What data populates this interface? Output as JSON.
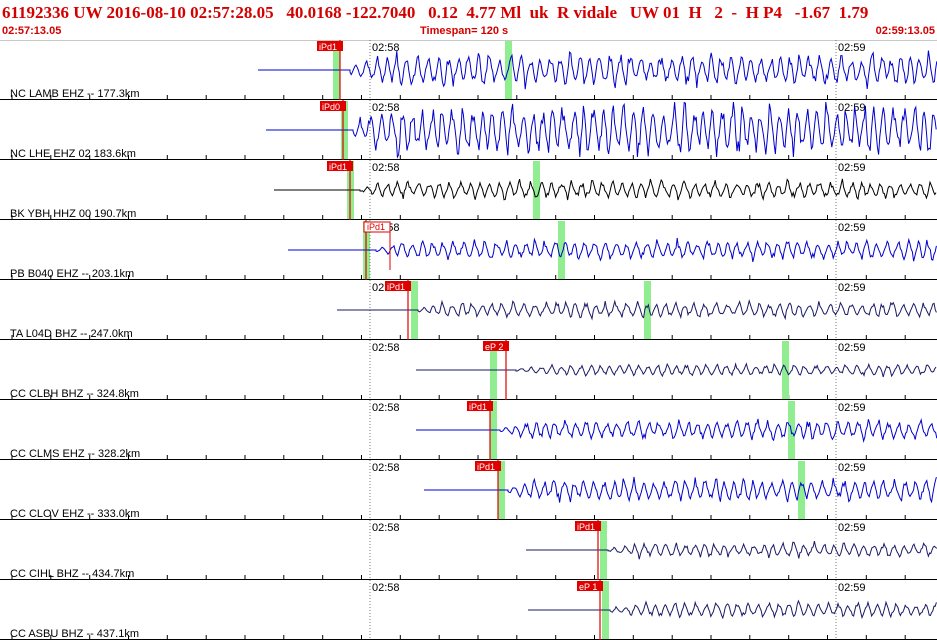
{
  "header": {
    "title": "61192336 UW 2016-08-10 02:57:28.05   40.0168 -122.7040   0.12  4.77 Ml  uk  R vidale   UW 01  H   2  -  H P4   -1.67  1.79",
    "start_time": "02:57:13.05",
    "timespan": "Timespan= 120 s",
    "end_time": "02:59:13.05"
  },
  "time_marks": [
    "02:58",
    "02:59"
  ],
  "colors": {
    "blue": "#0000cc",
    "black": "#000000",
    "navy": "#1a1a66",
    "pick_red": "#e00000",
    "green_band": "#90ee90",
    "label_text": "#000000"
  },
  "traces": [
    {
      "label": "NC LAMB EHZ -- 177.3km",
      "pick": "iPd1",
      "color": "blue",
      "amp": 1.0,
      "onset": 0.4,
      "pick_style": "solid"
    },
    {
      "label": "NC LHE EHZ 02 183.6km",
      "pick": "iPd0",
      "color": "blue",
      "amp": 1.6,
      "onset": 0.45,
      "pick_style": "solid"
    },
    {
      "label": "BK YBH HHZ 00 190.7km",
      "pick": "iPd1",
      "color": "black",
      "amp": 0.55,
      "onset": 0.5,
      "pick_style": "solid"
    },
    {
      "label": "PB B040 EHZ -- 203.1km",
      "pick": "iPd1",
      "color": "blue",
      "amp": 0.6,
      "onset": 0.3,
      "pick_style": "outline"
    },
    {
      "label": "TA L04D BHZ -- 247.0km",
      "pick": "iPd1",
      "color": "navy",
      "amp": 0.5,
      "onset": 0.4,
      "pick_style": "solid"
    },
    {
      "label": "CC CLBH BHZ -- 324.8km",
      "pick": "eP 2",
      "color": "navy",
      "amp": 0.35,
      "onset": 0.6,
      "pick_style": "solid"
    },
    {
      "label": "CC CLMS EHZ -- 328.2km",
      "pick": "iPd1",
      "color": "blue",
      "amp": 0.6,
      "onset": 0.3,
      "pick_style": "solid"
    },
    {
      "label": "CC CLOV EHZ -- 333.0km",
      "pick": "iPd1",
      "color": "blue",
      "amp": 0.7,
      "onset": 0.3,
      "pick_style": "solid"
    },
    {
      "label": "CC CIHL BHZ -- 434.7km",
      "pick": "iPd1",
      "color": "navy",
      "amp": 0.45,
      "onset": 0.5,
      "pick_style": "solid"
    },
    {
      "label": "CC ASBU BHZ -- 437.1km",
      "pick": "eP 1",
      "color": "navy",
      "amp": 0.5,
      "onset": 0.5,
      "pick_style": "solid"
    }
  ]
}
